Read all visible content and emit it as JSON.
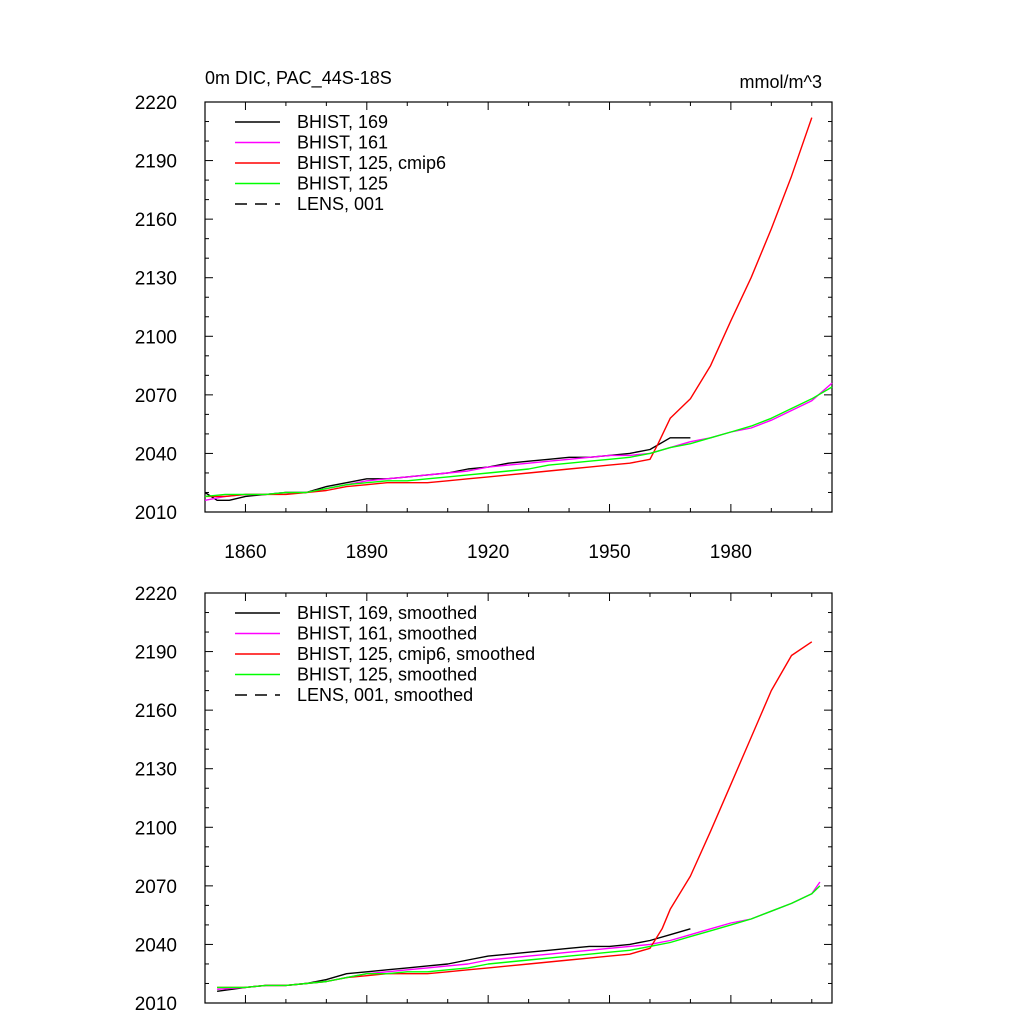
{
  "chart_data": [
    {
      "type": "line",
      "title": "0m DIC, PAC_44S-18S",
      "units": "mmol/m^3",
      "xlim": [
        1850,
        2005
      ],
      "ylim": [
        2010,
        2220
      ],
      "xticks": [
        1860,
        1890,
        1920,
        1950,
        1980
      ],
      "yticks": [
        2010,
        2040,
        2070,
        2100,
        2130,
        2160,
        2190,
        2220
      ],
      "show_xtick_labels": true,
      "legend_position": "top-left",
      "series": [
        {
          "name": "BHIST, 169",
          "color": "#000000",
          "dash": "solid",
          "x": [
            1850,
            1853,
            1856,
            1860,
            1865,
            1870,
            1875,
            1880,
            1885,
            1890,
            1895,
            1900,
            1905,
            1910,
            1915,
            1920,
            1925,
            1930,
            1935,
            1940,
            1945,
            1950,
            1955,
            1960,
            1965,
            1970
          ],
          "y": [
            2020,
            2016,
            2016,
            2018,
            2019,
            2020,
            2020,
            2023,
            2025,
            2027,
            2027,
            2028,
            2029,
            2030,
            2032,
            2033,
            2035,
            2036,
            2037,
            2038,
            2038,
            2039,
            2040,
            2042,
            2048,
            2048
          ]
        },
        {
          "name": "BHIST, 161",
          "color": "#ff00ff",
          "dash": "solid",
          "x": [
            1850,
            1855,
            1860,
            1865,
            1870,
            1875,
            1880,
            1885,
            1890,
            1895,
            1900,
            1905,
            1910,
            1915,
            1920,
            1925,
            1930,
            1935,
            1940,
            1945,
            1950,
            1955,
            1960,
            1965,
            1970,
            1975,
            1980,
            1985,
            1990,
            1995,
            2000,
            2005
          ],
          "y": [
            2016,
            2018,
            2019,
            2019,
            2020,
            2020,
            2022,
            2024,
            2026,
            2027,
            2028,
            2029,
            2030,
            2031,
            2033,
            2034,
            2035,
            2036,
            2037,
            2038,
            2039,
            2039,
            2040,
            2043,
            2046,
            2048,
            2051,
            2053,
            2057,
            2062,
            2067,
            2076
          ]
        },
        {
          "name": "BHIST, 125, cmip6",
          "color": "#ff0000",
          "dash": "solid",
          "x": [
            1850,
            1855,
            1860,
            1865,
            1870,
            1875,
            1880,
            1885,
            1890,
            1895,
            1900,
            1905,
            1910,
            1915,
            1920,
            1925,
            1930,
            1935,
            1940,
            1945,
            1950,
            1955,
            1960,
            1962,
            1965,
            1970,
            1975,
            1980,
            1985,
            1990,
            1995,
            2000
          ],
          "y": [
            2018,
            2018,
            2019,
            2019,
            2019,
            2020,
            2021,
            2023,
            2024,
            2025,
            2025,
            2025,
            2026,
            2027,
            2028,
            2029,
            2030,
            2031,
            2032,
            2033,
            2034,
            2035,
            2037,
            2045,
            2058,
            2068,
            2085,
            2108,
            2130,
            2155,
            2182,
            2212
          ]
        },
        {
          "name": "BHIST, 125",
          "color": "#00ff00",
          "dash": "solid",
          "x": [
            1850,
            1855,
            1860,
            1865,
            1870,
            1875,
            1880,
            1885,
            1890,
            1895,
            1900,
            1905,
            1910,
            1915,
            1920,
            1925,
            1930,
            1935,
            1940,
            1945,
            1950,
            1955,
            1960,
            1965,
            1970,
            1975,
            1980,
            1985,
            1990,
            1995,
            2000,
            2005
          ],
          "y": [
            2018,
            2019,
            2019,
            2019,
            2020,
            2020,
            2022,
            2024,
            2025,
            2026,
            2026,
            2027,
            2028,
            2029,
            2030,
            2031,
            2032,
            2034,
            2035,
            2036,
            2037,
            2038,
            2040,
            2043,
            2045,
            2048,
            2051,
            2054,
            2058,
            2063,
            2068,
            2074
          ]
        },
        {
          "name": "LENS, 001",
          "color": "#000000",
          "dash": "dashed",
          "x": [],
          "y": []
        }
      ]
    },
    {
      "type": "line",
      "title": "",
      "units": "",
      "xlim": [
        1850,
        2005
      ],
      "ylim": [
        2010,
        2220
      ],
      "xticks": [
        1860,
        1890,
        1920,
        1950,
        1980
      ],
      "yticks": [
        2010,
        2040,
        2070,
        2100,
        2130,
        2160,
        2190,
        2220
      ],
      "show_xtick_labels": false,
      "legend_position": "top-left",
      "series": [
        {
          "name": "BHIST, 169, smoothed",
          "color": "#000000",
          "dash": "solid",
          "x": [
            1853,
            1860,
            1865,
            1870,
            1875,
            1880,
            1885,
            1890,
            1895,
            1900,
            1905,
            1910,
            1915,
            1920,
            1925,
            1930,
            1935,
            1940,
            1945,
            1950,
            1955,
            1960,
            1965,
            1970
          ],
          "y": [
            2016,
            2018,
            2019,
            2019,
            2020,
            2022,
            2025,
            2026,
            2027,
            2028,
            2029,
            2030,
            2032,
            2034,
            2035,
            2036,
            2037,
            2038,
            2039,
            2039,
            2040,
            2042,
            2045,
            2048
          ]
        },
        {
          "name": "BHIST, 161, smoothed",
          "color": "#ff00ff",
          "dash": "solid",
          "x": [
            1853,
            1860,
            1865,
            1870,
            1875,
            1880,
            1885,
            1890,
            1895,
            1900,
            1905,
            1910,
            1915,
            1920,
            1925,
            1930,
            1935,
            1940,
            1945,
            1950,
            1955,
            1960,
            1965,
            1970,
            1975,
            1980,
            1985,
            1990,
            1995,
            2000,
            2002
          ],
          "y": [
            2017,
            2018,
            2019,
            2019,
            2020,
            2021,
            2023,
            2025,
            2026,
            2027,
            2028,
            2029,
            2030,
            2032,
            2033,
            2034,
            2035,
            2036,
            2037,
            2038,
            2039,
            2040,
            2042,
            2045,
            2048,
            2051,
            2053,
            2057,
            2061,
            2066,
            2072
          ]
        },
        {
          "name": "BHIST, 125, cmip6, smoothed",
          "color": "#ff0000",
          "dash": "solid",
          "x": [
            1853,
            1860,
            1865,
            1870,
            1875,
            1880,
            1885,
            1890,
            1895,
            1900,
            1905,
            1910,
            1915,
            1920,
            1925,
            1930,
            1935,
            1940,
            1945,
            1950,
            1955,
            1960,
            1963,
            1965,
            1970,
            1975,
            1980,
            1985,
            1990,
            1995,
            2000
          ],
          "y": [
            2018,
            2018,
            2019,
            2019,
            2020,
            2021,
            2023,
            2024,
            2025,
            2025,
            2025,
            2026,
            2027,
            2028,
            2029,
            2030,
            2031,
            2032,
            2033,
            2034,
            2035,
            2038,
            2048,
            2058,
            2075,
            2098,
            2122,
            2146,
            2170,
            2188,
            2195
          ]
        },
        {
          "name": "BHIST, 125, smoothed",
          "color": "#00ff00",
          "dash": "solid",
          "x": [
            1853,
            1860,
            1865,
            1870,
            1875,
            1880,
            1885,
            1890,
            1895,
            1900,
            1905,
            1910,
            1915,
            1920,
            1925,
            1930,
            1935,
            1940,
            1945,
            1950,
            1955,
            1960,
            1965,
            1970,
            1975,
            1980,
            1985,
            1990,
            1995,
            2000,
            2002
          ],
          "y": [
            2018,
            2018,
            2019,
            2019,
            2020,
            2021,
            2023,
            2025,
            2025,
            2026,
            2026,
            2027,
            2028,
            2030,
            2031,
            2032,
            2033,
            2034,
            2035,
            2036,
            2037,
            2039,
            2041,
            2044,
            2047,
            2050,
            2053,
            2057,
            2061,
            2066,
            2070
          ]
        },
        {
          "name": "LENS, 001, smoothed",
          "color": "#000000",
          "dash": "dashed",
          "x": [],
          "y": []
        }
      ]
    }
  ]
}
